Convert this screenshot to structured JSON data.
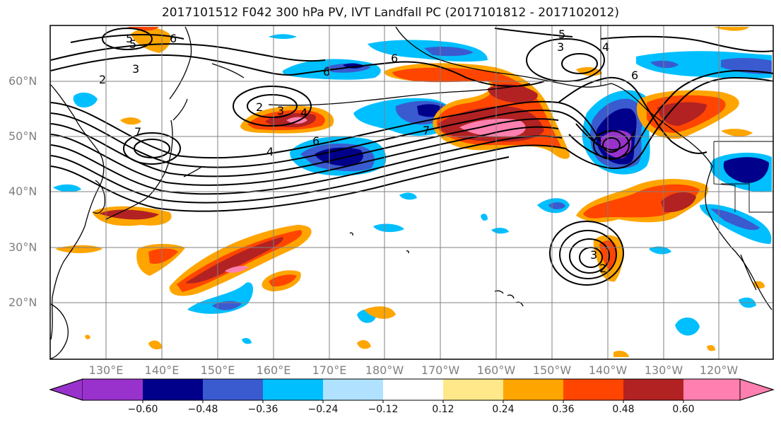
{
  "title": "2017101512 F042 300 hPa PV, IVT Landfall PC (2017101812 - 2017102012)",
  "lat_labels": [
    "60°N",
    "50°N",
    "40°N",
    "30°N",
    "20°N"
  ],
  "lon_labels": [
    "130°E",
    "140°E",
    "150°E",
    "160°E",
    "170°E",
    "180°W",
    "170°W",
    "160°W",
    "150°W",
    "140°W",
    "130°W",
    "120°W"
  ],
  "colorbar": {
    "ticks": [
      "−0.60",
      "−0.48",
      "−0.36",
      "−0.24",
      "−0.12",
      "0.12",
      "0.24",
      "0.36",
      "0.48",
      "0.60"
    ],
    "colors": [
      "#9932cc",
      "#00008b",
      "#3a5bd0",
      "#00bfff",
      "#b0e2ff",
      "#ffffff",
      "#ffe88a",
      "#ffa500",
      "#ff4500",
      "#b22222",
      "#ff80b0"
    ]
  },
  "contour_labels": [
    "2",
    "3",
    "4",
    "5",
    "6",
    "7",
    "2",
    "3",
    "6",
    "7",
    "3",
    "5",
    "6",
    "4",
    "6",
    "4",
    "5",
    "6",
    "3",
    "2"
  ]
}
